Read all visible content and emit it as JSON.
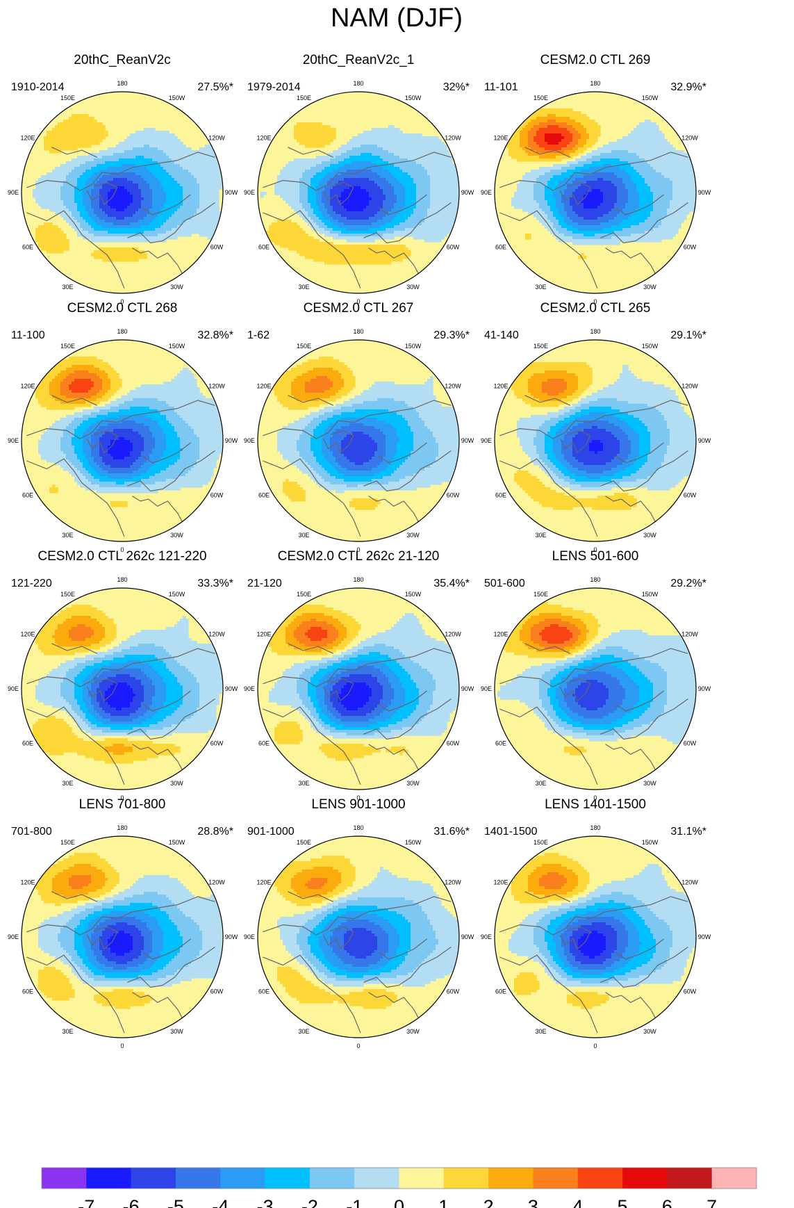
{
  "figure_title": "NAM (DJF)",
  "colors": {
    "levels": [
      "#8a33f0",
      "#1a1aff",
      "#2d45e8",
      "#3677ea",
      "#2a9cf4",
      "#00c0ff",
      "#7cc8f2",
      "#b3ddf2",
      "#fdf59a",
      "#fdd638",
      "#fcab0e",
      "#f9801d",
      "#f84413",
      "#e60b0b",
      "#c4191c",
      "#fcb4b4"
    ],
    "land_outline": "#666666"
  },
  "colorbar": {
    "labels": [
      "-7",
      "-6",
      "-5",
      "-4",
      "-3",
      "-2",
      "-1",
      "0",
      "1",
      "2",
      "3",
      "4",
      "5",
      "6",
      "7"
    ]
  },
  "lon_labels": [
    "0",
    "30E",
    "60E",
    "90E",
    "120E",
    "150E",
    "180",
    "150W",
    "120W",
    "90W",
    "60W",
    "30W"
  ],
  "chart_data": [
    {
      "type": "polar_contour",
      "title": "20thC_ReanV2c",
      "period": "1910-2014",
      "variance": "27.5%*",
      "pacific_max": 2.0,
      "arctic_min": -5.2,
      "atlantic_max": 2.5
    },
    {
      "type": "polar_contour",
      "title": "20thC_ReanV2c_1",
      "period": "1979-2014",
      "variance": "32%*",
      "pacific_max": 1.6,
      "arctic_min": -5.6,
      "atlantic_max": 3.2
    },
    {
      "type": "polar_contour",
      "title": "CESM2.0 CTL 269",
      "period": "11-101",
      "variance": "32.9%*",
      "pacific_max": 5.5,
      "arctic_min": -5.2,
      "atlantic_max": 2.0
    },
    {
      "type": "polar_contour",
      "title": "CESM2.0 CTL 268",
      "period": "11-100",
      "variance": "32.8%*",
      "pacific_max": 4.6,
      "arctic_min": -5.2,
      "atlantic_max": 2.0
    },
    {
      "type": "polar_contour",
      "title": "CESM2.0 CTL 267",
      "period": "1-62",
      "variance": "29.3%*",
      "pacific_max": 3.6,
      "arctic_min": -4.6,
      "atlantic_max": 2.0
    },
    {
      "type": "polar_contour",
      "title": "CESM2.0 CTL 265",
      "period": "41-140",
      "variance": "29.1%*",
      "pacific_max": 3.6,
      "arctic_min": -5.2,
      "atlantic_max": 2.6
    },
    {
      "type": "polar_contour",
      "title": "CESM2.0 CTL 262c 121-220",
      "period": "121-220",
      "variance": "33.3%*",
      "pacific_max": 3.6,
      "arctic_min": -5.4,
      "atlantic_max": 3.3
    },
    {
      "type": "polar_contour",
      "title": "CESM2.0 CTL 262c 21-120",
      "period": "21-120",
      "variance": "35.4%*",
      "pacific_max": 4.6,
      "arctic_min": -5.6,
      "atlantic_max": 2.6
    },
    {
      "type": "polar_contour",
      "title": "LENS 501-600",
      "period": "501-600",
      "variance": "29.2%*",
      "pacific_max": 5.0,
      "arctic_min": -4.6,
      "atlantic_max": 2.0
    },
    {
      "type": "polar_contour",
      "title": "LENS 701-800",
      "period": "701-800",
      "variance": "28.8%*",
      "pacific_max": 3.6,
      "arctic_min": -5.2,
      "atlantic_max": 2.6
    },
    {
      "type": "polar_contour",
      "title": "LENS 901-1000",
      "period": "901-1000",
      "variance": "31.6%*",
      "pacific_max": 3.4,
      "arctic_min": -4.6,
      "atlantic_max": 2.5
    },
    {
      "type": "polar_contour",
      "title": "LENS 1401-1500",
      "period": "1401-1500",
      "variance": "31.1%*",
      "pacific_max": 3.6,
      "arctic_min": -5.4,
      "atlantic_max": 2.4
    }
  ]
}
